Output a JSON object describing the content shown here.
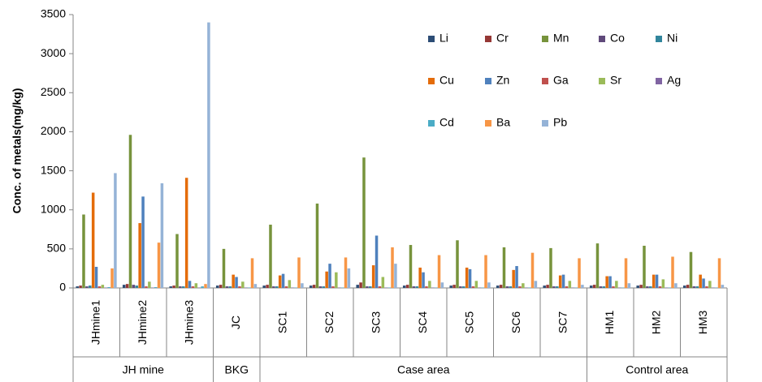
{
  "chart_data": {
    "type": "bar",
    "y_label": "Conc. of metals(mg/kg)",
    "categories": [
      "JHmine1",
      "JHmine2",
      "JHmine3",
      "JC",
      "SC1",
      "SC2",
      "SC3",
      "SC4",
      "SC5",
      "SC6",
      "SC7",
      "HM1",
      "HM2",
      "HM3"
    ],
    "groups": [
      {
        "label": "JH mine",
        "count": 3
      },
      {
        "label": "BKG",
        "count": 1
      },
      {
        "label": "Case area",
        "count": 7
      },
      {
        "label": "Control area",
        "count": 3
      }
    ],
    "ylim": [
      0,
      3500
    ],
    "yticks": [
      0,
      500,
      1000,
      1500,
      2000,
      2500,
      3000,
      3500
    ],
    "legend": "upper-right",
    "series": [
      {
        "name": "Li",
        "color": "#2c4d75",
        "values": [
          20,
          40,
          20,
          30,
          30,
          30,
          40,
          30,
          30,
          30,
          30,
          30,
          30,
          30
        ]
      },
      {
        "name": "Cr",
        "color": "#953735",
        "values": [
          30,
          50,
          30,
          40,
          40,
          40,
          70,
          40,
          40,
          40,
          40,
          40,
          40,
          40
        ]
      },
      {
        "name": "Mn",
        "color": "#77933c",
        "values": [
          940,
          1960,
          690,
          500,
          810,
          1080,
          1670,
          550,
          610,
          520,
          510,
          570,
          540,
          460
        ]
      },
      {
        "name": "Co",
        "color": "#5f497a",
        "values": [
          20,
          40,
          20,
          20,
          20,
          20,
          20,
          20,
          20,
          20,
          20,
          20,
          20,
          20
        ]
      },
      {
        "name": "Ni",
        "color": "#31859c",
        "values": [
          30,
          30,
          20,
          20,
          20,
          20,
          20,
          20,
          20,
          20,
          20,
          20,
          20,
          20
        ]
      },
      {
        "name": "Cu",
        "color": "#e46c0a",
        "values": [
          1220,
          830,
          1410,
          170,
          160,
          210,
          290,
          260,
          260,
          230,
          160,
          150,
          170,
          170
        ]
      },
      {
        "name": "Zn",
        "color": "#4f81bd",
        "values": [
          270,
          1170,
          90,
          140,
          180,
          310,
          670,
          200,
          240,
          280,
          170,
          150,
          170,
          120
        ]
      },
      {
        "name": "Ga",
        "color": "#c0504d",
        "values": [
          20,
          20,
          20,
          20,
          20,
          20,
          20,
          20,
          20,
          20,
          20,
          20,
          20,
          20
        ]
      },
      {
        "name": "Sr",
        "color": "#9bbb59",
        "values": [
          40,
          80,
          60,
          80,
          100,
          200,
          140,
          90,
          90,
          60,
          90,
          90,
          110,
          90
        ]
      },
      {
        "name": "Ag",
        "color": "#8064a2",
        "values": [
          5,
          5,
          5,
          5,
          5,
          5,
          5,
          5,
          5,
          5,
          5,
          5,
          5,
          5
        ]
      },
      {
        "name": "Cd",
        "color": "#4bacc6",
        "values": [
          10,
          10,
          20,
          5,
          5,
          5,
          5,
          5,
          5,
          5,
          5,
          5,
          5,
          5
        ]
      },
      {
        "name": "Ba",
        "color": "#f79646",
        "values": [
          250,
          580,
          50,
          380,
          390,
          390,
          520,
          420,
          420,
          450,
          380,
          380,
          400,
          380
        ]
      },
      {
        "name": "Pb",
        "color": "#95b3d7",
        "values": [
          1470,
          1340,
          3400,
          50,
          60,
          250,
          310,
          70,
          70,
          90,
          40,
          60,
          60,
          40
        ]
      }
    ]
  }
}
